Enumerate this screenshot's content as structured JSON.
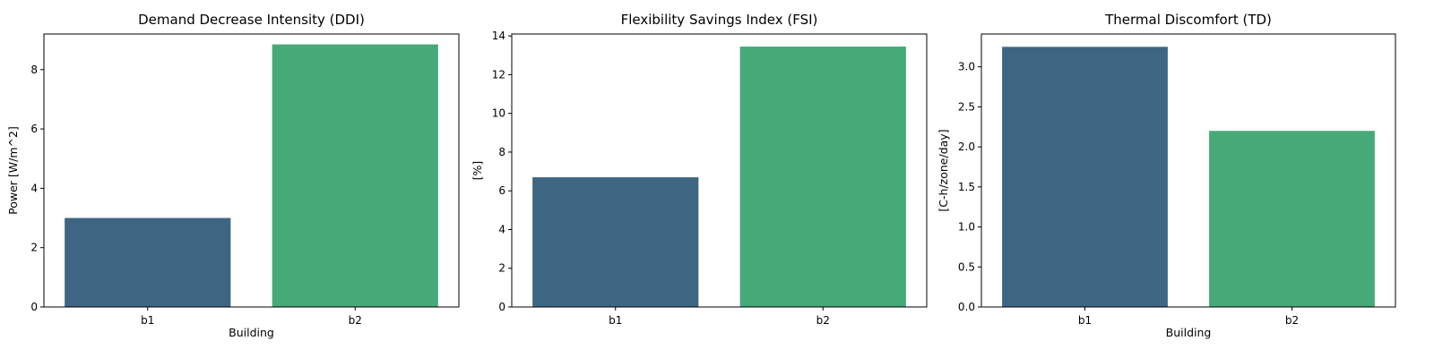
{
  "chart_data": [
    {
      "type": "bar",
      "title": "Demand Decrease Intensity (DDI)",
      "xlabel": "Building",
      "ylabel": "Power [W/m^2]",
      "categories": [
        "b1",
        "b2"
      ],
      "values": [
        3.0,
        8.85
      ],
      "colors": [
        "#3e6682",
        "#46a978"
      ],
      "ylim": [
        0,
        9.2
      ],
      "yticks": [
        0,
        2,
        4,
        6,
        8
      ],
      "ytick_labels": [
        "0",
        "2",
        "4",
        "6",
        "8"
      ],
      "grid": false
    },
    {
      "type": "bar",
      "title": "Flexibility Savings Index (FSI)",
      "xlabel": "",
      "ylabel": "[%]",
      "categories": [
        "b1",
        "b2"
      ],
      "values": [
        6.7,
        13.45
      ],
      "colors": [
        "#3e6682",
        "#46a978"
      ],
      "ylim": [
        0,
        14.1
      ],
      "yticks": [
        0,
        2,
        4,
        6,
        8,
        10,
        12,
        14
      ],
      "ytick_labels": [
        "0",
        "2",
        "4",
        "6",
        "8",
        "10",
        "12",
        "14"
      ],
      "grid": false
    },
    {
      "type": "bar",
      "title": "Thermal Discomfort (TD)",
      "xlabel": "Building",
      "ylabel": "[C-h/zone/day]",
      "categories": [
        "b1",
        "b2"
      ],
      "values": [
        3.25,
        2.2
      ],
      "colors": [
        "#3e6682",
        "#46a978"
      ],
      "ylim": [
        0,
        3.41
      ],
      "yticks": [
        0,
        0.5,
        1.0,
        1.5,
        2.0,
        2.5,
        3.0
      ],
      "ytick_labels": [
        "0.0",
        "0.5",
        "1.0",
        "1.5",
        "2.0",
        "2.5",
        "3.0"
      ],
      "grid": false
    }
  ]
}
